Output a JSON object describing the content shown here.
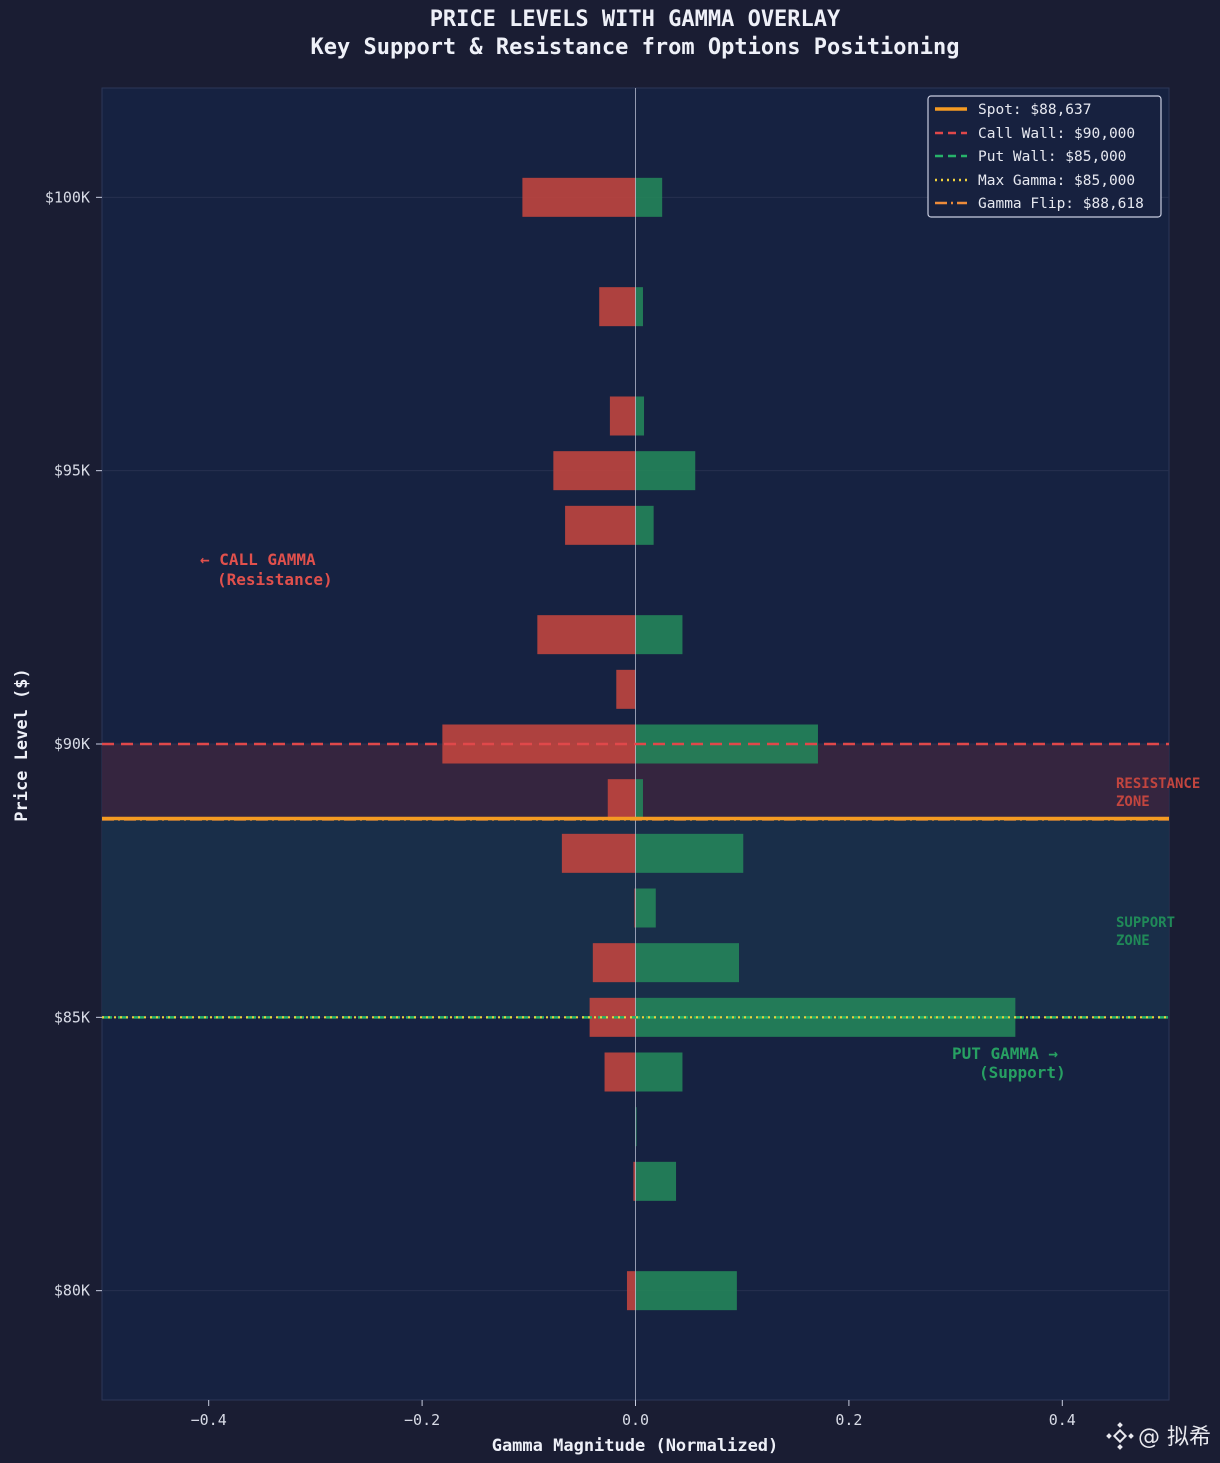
{
  "chart_data": {
    "type": "bar",
    "orientation": "horizontal",
    "title": "PRICE LEVELS WITH GAMMA OVERLAY",
    "subtitle": "Key Support & Resistance from Options Positioning",
    "xlabel": "Gamma Magnitude (Normalized)",
    "ylabel": "Price Level ($)",
    "xlim": [
      -0.5,
      0.5
    ],
    "ylim": [
      78000,
      102000
    ],
    "xticks": [
      -0.4,
      -0.2,
      0.0,
      0.2,
      0.4
    ],
    "xtick_labels": [
      "−0.4",
      "−0.2",
      "0.0",
      "0.2",
      "0.4"
    ],
    "yticks": [
      80000,
      85000,
      90000,
      95000,
      100000
    ],
    "ytick_labels": [
      "$80K",
      "$85K",
      "$90K",
      "$95K",
      "$100K"
    ],
    "price_levels": [
      100000,
      98000,
      96000,
      95000,
      94000,
      92000,
      91000,
      90000,
      89000,
      88000,
      87000,
      86000,
      85000,
      84000,
      83000,
      82000,
      80000
    ],
    "series": [
      {
        "name": "Call Gamma",
        "color": "#c4453f",
        "values": [
          -0.106,
          -0.034,
          -0.024,
          -0.077,
          -0.066,
          -0.092,
          -0.018,
          -0.181,
          -0.026,
          -0.069,
          -0.001,
          -0.04,
          -0.043,
          -0.029,
          0.0,
          -0.002,
          -0.008
        ]
      },
      {
        "name": "Put Gamma",
        "color": "#24865a",
        "values": [
          0.025,
          0.007,
          0.008,
          0.056,
          0.017,
          0.044,
          0.0,
          0.171,
          0.007,
          0.101,
          0.019,
          0.097,
          0.356,
          0.044,
          0.001,
          0.038,
          0.095
        ]
      }
    ],
    "levels": {
      "spot": 88637,
      "call_wall": 90000,
      "put_wall": 85000,
      "max_gamma": 85000,
      "gamma_flip": 88618
    },
    "legend": {
      "position": "top-right",
      "entries": [
        "Spot: $88,637",
        "Call Wall: $90,000",
        "Put Wall: $85,000",
        "Max Gamma: $85,000",
        "Gamma Flip: $88,618"
      ],
      "colors": [
        "#f59b22",
        "#e0484a",
        "#27b36a",
        "#f1d23c",
        "#ee8b3a"
      ]
    },
    "annotations": {
      "call_gamma": [
        "← CALL GAMMA",
        "(Resistance)"
      ],
      "put_gamma": [
        "PUT GAMMA →",
        "(Support)"
      ],
      "resistance_zone": [
        "RESISTANCE",
        "ZONE"
      ],
      "support_zone": [
        "SUPPORT",
        "ZONE"
      ]
    },
    "zones": {
      "resistance": [
        88637,
        90000
      ],
      "support": [
        85000,
        88618
      ]
    }
  },
  "colors": {
    "page_bg": "#1a1d33",
    "plot_bg": "#162241",
    "call": "#c4453f",
    "put": "#24865a",
    "resistance_zone_fill": "#3b2640",
    "support_zone_fill": "#19304a",
    "call_text": "#e0504c",
    "put_text": "#27a062",
    "resistance_text": "#c2453f",
    "support_text": "#208a58"
  },
  "watermark": "@ 拟希"
}
